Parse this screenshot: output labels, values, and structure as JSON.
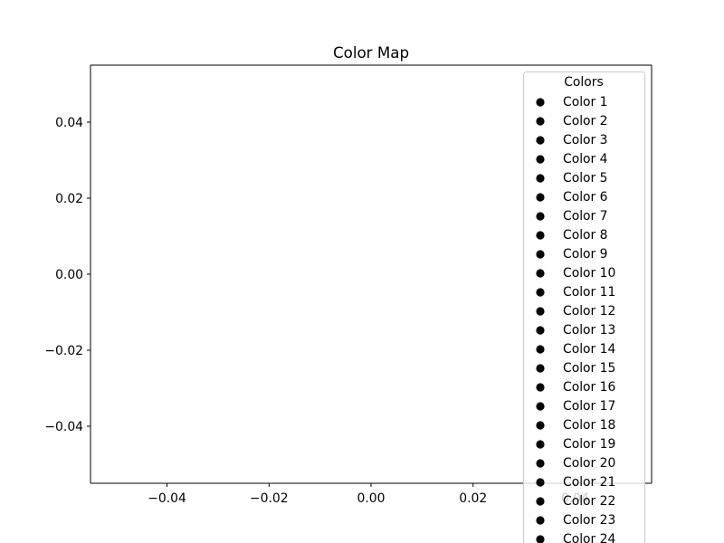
{
  "chart_data": {
    "type": "scatter",
    "title": "Color Map",
    "xlabel": "",
    "ylabel": "",
    "xlim": [
      -0.055,
      0.055
    ],
    "ylim": [
      -0.055,
      0.055
    ],
    "xticks": [
      -0.04,
      -0.02,
      0.0,
      0.02,
      0.04
    ],
    "yticks": [
      -0.04,
      -0.02,
      0.0,
      0.02,
      0.04
    ],
    "xtick_labels": [
      "−0.04",
      "−0.02",
      "0.00",
      "0.02",
      "0.04"
    ],
    "ytick_labels": [
      "−0.04",
      "−0.02",
      "0.00",
      "0.02",
      "0.04"
    ],
    "grid": false,
    "legend": {
      "title": "Colors",
      "placement": "upper right",
      "entries": [
        "Color 1",
        "Color 2",
        "Color 3",
        "Color 4",
        "Color 5",
        "Color 6",
        "Color 7",
        "Color 8",
        "Color 9",
        "Color 10",
        "Color 11",
        "Color 12",
        "Color 13",
        "Color 14",
        "Color 15",
        "Color 16",
        "Color 17",
        "Color 18",
        "Color 19",
        "Color 20",
        "Color 21",
        "Color 22",
        "Color 23",
        "Color 24"
      ]
    },
    "marker_color": "#000000",
    "series": []
  }
}
